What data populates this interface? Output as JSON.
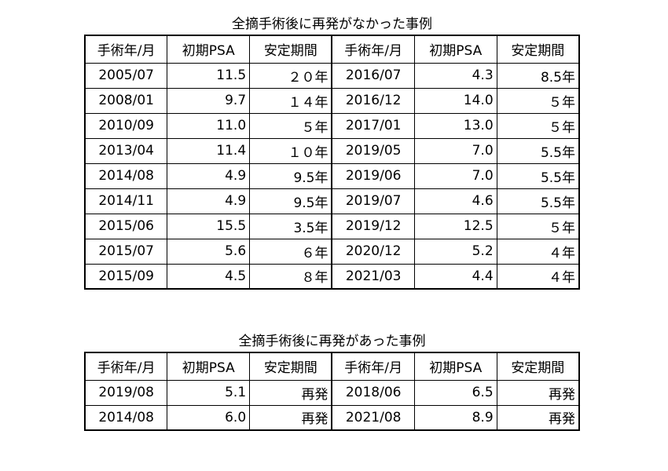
{
  "tables": [
    {
      "title": "全摘手術後に再発がなかった事例",
      "header": [
        "手術年/月",
        "初期PSA",
        "安定期間",
        "手術年/月",
        "初期PSA",
        "安定期間"
      ],
      "rows": [
        [
          "2005/07",
          "11.5",
          "２０年",
          "2016/07",
          "4.3",
          "8.5年"
        ],
        [
          "2008/01",
          "9.7",
          "１４年",
          "2016/12",
          "14.0",
          "５年"
        ],
        [
          "2010/09",
          "11.0",
          "５年",
          "2017/01",
          "13.0",
          "５年"
        ],
        [
          "2013/04",
          "11.4",
          "１０年",
          "2019/05",
          "7.0",
          "5.5年"
        ],
        [
          "2014/08",
          "4.9",
          "9.5年",
          "2019/06",
          "7.0",
          "5.5年"
        ],
        [
          "2014/11",
          "4.9",
          "9.5年",
          "2019/07",
          "4.6",
          "5.5年"
        ],
        [
          "2015/06",
          "15.5",
          "3.5年",
          "2019/12",
          "12.5",
          "５年"
        ],
        [
          "2015/07",
          "5.6",
          "６年",
          "2020/12",
          "5.2",
          "４年"
        ],
        [
          "2015/09",
          "4.5",
          "８年",
          "2021/03",
          "4.4",
          "４年"
        ]
      ]
    },
    {
      "title": "全摘手術後に再発があった事例",
      "header": [
        "手術年/月",
        "初期PSA",
        "安定期間",
        "手術年/月",
        "初期PSA",
        "安定期間"
      ],
      "rows": [
        [
          "2019/08",
          "5.1",
          "再発",
          "2018/06",
          "6.5",
          "再発"
        ],
        [
          "2014/08",
          "6.0",
          "再発",
          "2021/08",
          "8.9",
          "再発"
        ]
      ]
    }
  ]
}
